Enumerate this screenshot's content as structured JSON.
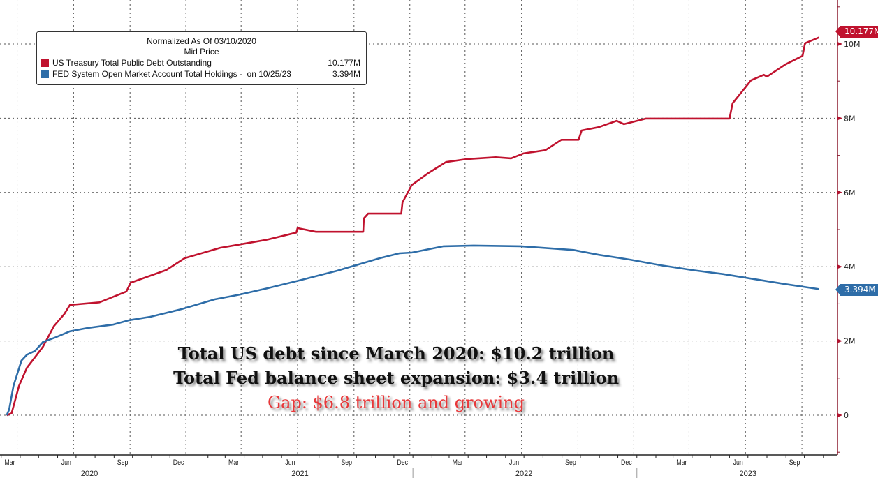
{
  "legend": {
    "header_line1": "Normalized As Of 03/10/2020",
    "header_line2": "Mid Price",
    "items": [
      {
        "label": "US Treasury Total Public Debt Outstanding",
        "value": "10.177M",
        "color": "#c0122e"
      },
      {
        "label": "FED System Open Market Account Total Holdings -  on 10/25/23",
        "value": "3.394M",
        "color": "#2e6da8"
      }
    ]
  },
  "annotation": {
    "line1": "Total US debt since March 2020: $10.2 trillion",
    "line2": "Total Fed balance sheet expansion: $3.4 trillion",
    "line3": "Gap: $6.8 trillion and growing"
  },
  "last_value_tags": {
    "debt": "10.177M",
    "fed": "3.394M"
  },
  "chart_data": {
    "type": "line",
    "title": "",
    "xlabel": "",
    "ylabel": "",
    "y_axis_side": "right",
    "ylim": [
      -1.05,
      11.2
    ],
    "y_ticks": [
      {
        "value": 0,
        "label": "0"
      },
      {
        "value": 2,
        "label": "2M"
      },
      {
        "value": 4,
        "label": "4M"
      },
      {
        "value": 6,
        "label": "6M"
      },
      {
        "value": 8,
        "label": "8M"
      },
      {
        "value": 10,
        "label": "10M"
      }
    ],
    "grid": true,
    "x_ticks": [
      {
        "label": "Mar",
        "date": "2020-03-15"
      },
      {
        "label": "Jun",
        "date": "2020-06-15"
      },
      {
        "label": "Sep",
        "date": "2020-09-15"
      },
      {
        "label": "Dec",
        "date": "2020-12-15"
      },
      {
        "label": "Mar",
        "date": "2021-03-15"
      },
      {
        "label": "Jun",
        "date": "2021-06-15"
      },
      {
        "label": "Sep",
        "date": "2021-09-15"
      },
      {
        "label": "Dec",
        "date": "2021-12-15"
      },
      {
        "label": "Mar",
        "date": "2022-03-15"
      },
      {
        "label": "Jun",
        "date": "2022-06-15"
      },
      {
        "label": "Sep",
        "date": "2022-09-15"
      },
      {
        "label": "Dec",
        "date": "2022-12-15"
      },
      {
        "label": "Mar",
        "date": "2023-03-15"
      },
      {
        "label": "Jun",
        "date": "2023-06-15"
      },
      {
        "label": "Sep",
        "date": "2023-09-15"
      }
    ],
    "x_years": [
      "2020",
      "2021",
      "2022",
      "2023"
    ],
    "series": [
      {
        "name": "US Treasury Total Public Debt Outstanding",
        "color": "#c0122e",
        "points": [
          [
            "2020-03-10",
            0
          ],
          [
            "2020-03-18",
            0.05
          ],
          [
            "2020-03-30",
            0.79
          ],
          [
            "2020-04-12",
            1.28
          ],
          [
            "2020-05-08",
            1.84
          ],
          [
            "2020-05-26",
            2.4
          ],
          [
            "2020-06-12",
            2.73
          ],
          [
            "2020-06-21",
            2.97
          ],
          [
            "2020-08-08",
            3.04
          ],
          [
            "2020-09-21",
            3.33
          ],
          [
            "2020-09-28",
            3.57
          ],
          [
            "2020-11-25",
            3.91
          ],
          [
            "2020-12-25",
            4.23
          ],
          [
            "2021-02-21",
            4.51
          ],
          [
            "2021-03-25",
            4.6
          ],
          [
            "2021-05-09",
            4.73
          ],
          [
            "2021-06-25",
            4.92
          ],
          [
            "2021-06-27",
            5.04
          ],
          [
            "2021-07-27",
            4.94
          ],
          [
            "2021-10-12",
            4.94
          ],
          [
            "2021-10-13",
            5.3
          ],
          [
            "2021-10-20",
            5.43
          ],
          [
            "2021-12-13",
            5.43
          ],
          [
            "2021-12-15",
            5.73
          ],
          [
            "2021-12-30",
            6.2
          ],
          [
            "2022-01-26",
            6.52
          ],
          [
            "2022-02-24",
            6.82
          ],
          [
            "2022-03-31",
            6.9
          ],
          [
            "2022-05-16",
            6.95
          ],
          [
            "2022-06-10",
            6.92
          ],
          [
            "2022-06-30",
            7.05
          ],
          [
            "2022-08-05",
            7.14
          ],
          [
            "2022-08-31",
            7.42
          ],
          [
            "2022-09-28",
            7.42
          ],
          [
            "2022-10-03",
            7.67
          ],
          [
            "2022-10-31",
            7.76
          ],
          [
            "2022-11-29",
            7.93
          ],
          [
            "2022-12-11",
            7.84
          ],
          [
            "2023-01-16",
            7.99
          ],
          [
            "2023-06-01",
            7.99
          ],
          [
            "2023-06-06",
            8.4
          ],
          [
            "2023-07-06",
            9.02
          ],
          [
            "2023-07-27",
            9.17
          ],
          [
            "2023-08-01",
            9.12
          ],
          [
            "2023-08-31",
            9.45
          ],
          [
            "2023-09-28",
            9.68
          ],
          [
            "2023-10-02",
            10.02
          ],
          [
            "2023-10-25",
            10.177
          ]
        ]
      },
      {
        "name": "FED System Open Market Account Total Holdings",
        "color": "#2e6da8",
        "points": [
          [
            "2020-03-10",
            0
          ],
          [
            "2020-03-14",
            0.15
          ],
          [
            "2020-03-21",
            0.79
          ],
          [
            "2020-04-03",
            1.47
          ],
          [
            "2020-04-12",
            1.63
          ],
          [
            "2020-04-25",
            1.73
          ],
          [
            "2020-05-08",
            1.97
          ],
          [
            "2020-05-29",
            2.1
          ],
          [
            "2020-06-21",
            2.26
          ],
          [
            "2020-07-20",
            2.35
          ],
          [
            "2020-08-30",
            2.44
          ],
          [
            "2020-09-26",
            2.56
          ],
          [
            "2020-10-30",
            2.65
          ],
          [
            "2020-12-21",
            2.86
          ],
          [
            "2021-02-12",
            3.12
          ],
          [
            "2021-03-25",
            3.25
          ],
          [
            "2021-05-09",
            3.42
          ],
          [
            "2021-06-30",
            3.63
          ],
          [
            "2021-08-30",
            3.89
          ],
          [
            "2021-09-30",
            4.04
          ],
          [
            "2021-11-08",
            4.23
          ],
          [
            "2021-12-10",
            4.36
          ],
          [
            "2021-12-30",
            4.38
          ],
          [
            "2022-02-20",
            4.55
          ],
          [
            "2022-04-10",
            4.57
          ],
          [
            "2022-06-26",
            4.55
          ],
          [
            "2022-09-20",
            4.45
          ],
          [
            "2022-10-31",
            4.32
          ],
          [
            "2022-12-21",
            4.19
          ],
          [
            "2023-02-09",
            4.04
          ],
          [
            "2023-04-01",
            3.91
          ],
          [
            "2023-05-22",
            3.8
          ],
          [
            "2023-07-10",
            3.67
          ],
          [
            "2023-08-31",
            3.53
          ],
          [
            "2023-10-25",
            3.394
          ]
        ]
      }
    ]
  }
}
